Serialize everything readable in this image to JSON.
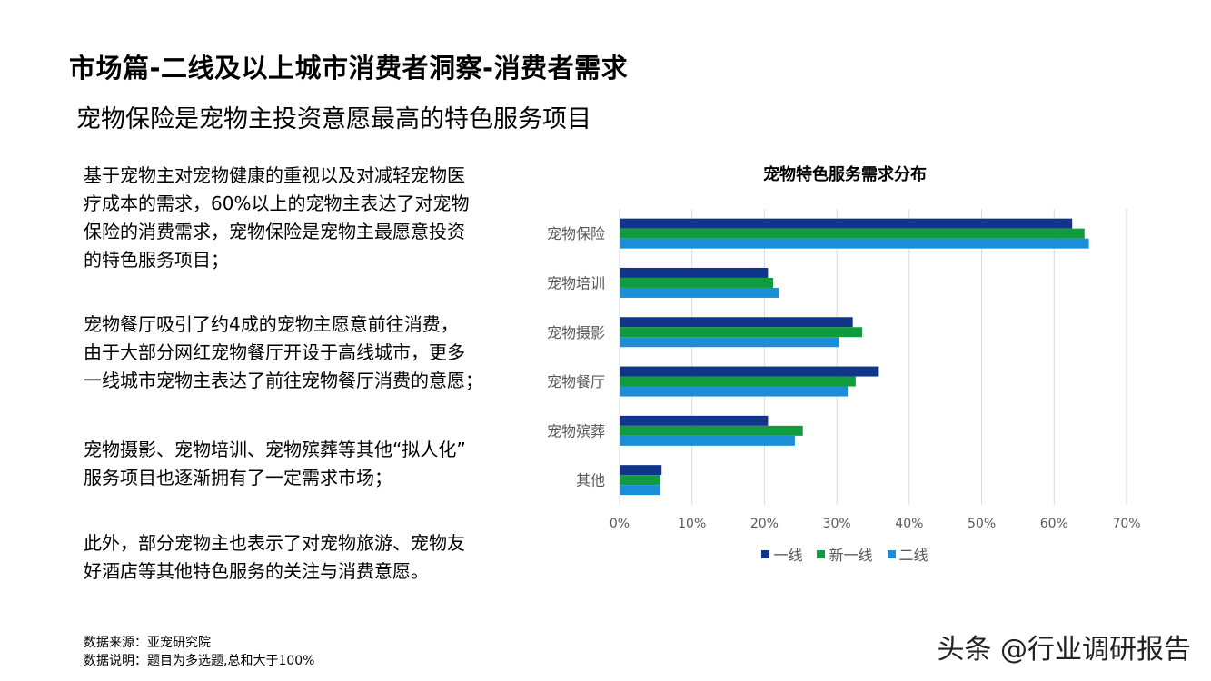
{
  "header": {
    "title": "市场篇-二线及以上城市消费者洞察-消费者需求",
    "subtitle": "宠物保险是宠物主投资意愿最高的特色服务项目"
  },
  "body": {
    "paragraphs": [
      [
        "基于宠物主对宠物健康的重视以及对减轻宠物医",
        "疗成本的需求，60%以上的宠物主表达了对宠物",
        "保险的消费需求，宠物保险是宠物主最愿意投资",
        "的特色服务项目；"
      ],
      [
        "宠物餐厅吸引了约4成的宠物主愿意前往消费，",
        "由于大部分网红宠物餐厅开设于高线城市，更多",
        "一线城市宠物主表达了前往宠物餐厅消费的意愿；"
      ],
      [
        "宠物摄影、宠物培训、宠物殡葬等其他“拟人化”",
        "服务项目也逐渐拥有了一定需求市场；"
      ],
      [
        "此外，部分宠物主也表示了对宠物旅游、宠物友",
        "好酒店等其他特色服务的关注与消费意愿。"
      ]
    ]
  },
  "footnotes": {
    "source": "数据来源：亚宠研究院",
    "note": "数据说明：题目为多选题,总和大于100%"
  },
  "watermark": "头条 @行业调研报告",
  "chart_data": {
    "type": "bar",
    "orientation": "horizontal",
    "title": "宠物特色服务需求分布",
    "categories": [
      "宠物保险",
      "宠物培训",
      "宠物摄影",
      "宠物餐厅",
      "宠物殡葬",
      "其他"
    ],
    "series": [
      {
        "name": "一线",
        "color": "#12358c",
        "values": [
          62.5,
          20.5,
          32.2,
          35.8,
          20.5,
          5.8
        ]
      },
      {
        "name": "新一线",
        "color": "#0f9b3e",
        "values": [
          64.2,
          21.2,
          33.5,
          32.6,
          25.3,
          5.6
        ]
      },
      {
        "name": "二线",
        "color": "#1a8fd8",
        "values": [
          64.8,
          22.0,
          30.3,
          31.5,
          24.2,
          5.6
        ]
      }
    ],
    "xlim": [
      0,
      70
    ],
    "xticks": [
      "0%",
      "10%",
      "20%",
      "30%",
      "40%",
      "50%",
      "60%",
      "70%"
    ],
    "grid": true,
    "legend": "bottom"
  }
}
